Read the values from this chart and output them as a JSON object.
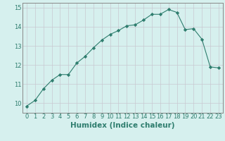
{
  "xlabel": "Humidex (Indice chaleur)",
  "ylabel": "",
  "x_values": [
    0,
    1,
    2,
    3,
    4,
    5,
    6,
    7,
    8,
    9,
    10,
    11,
    12,
    13,
    14,
    15,
    16,
    17,
    18,
    19,
    20,
    21,
    22,
    23
  ],
  "y_values": [
    9.85,
    10.15,
    10.75,
    11.2,
    11.5,
    11.5,
    12.1,
    12.45,
    12.9,
    13.3,
    13.6,
    13.8,
    14.05,
    14.1,
    14.35,
    14.65,
    14.65,
    14.9,
    14.75,
    13.85,
    13.9,
    13.35,
    11.9,
    11.85
  ],
  "line_color": "#2e7d6e",
  "marker": "D",
  "marker_size": 2.2,
  "bg_color": "#d6f0ee",
  "grid_color": "#c8c8d0",
  "axis_color": "#2e7d6e",
  "spine_color": "#888888",
  "ylim": [
    9.5,
    15.25
  ],
  "xlim": [
    -0.5,
    23.5
  ],
  "yticks": [
    10,
    11,
    12,
    13,
    14,
    15
  ],
  "xticks": [
    0,
    1,
    2,
    3,
    4,
    5,
    6,
    7,
    8,
    9,
    10,
    11,
    12,
    13,
    14,
    15,
    16,
    17,
    18,
    19,
    20,
    21,
    22,
    23
  ],
  "tick_fontsize": 6,
  "label_fontsize": 7.5
}
